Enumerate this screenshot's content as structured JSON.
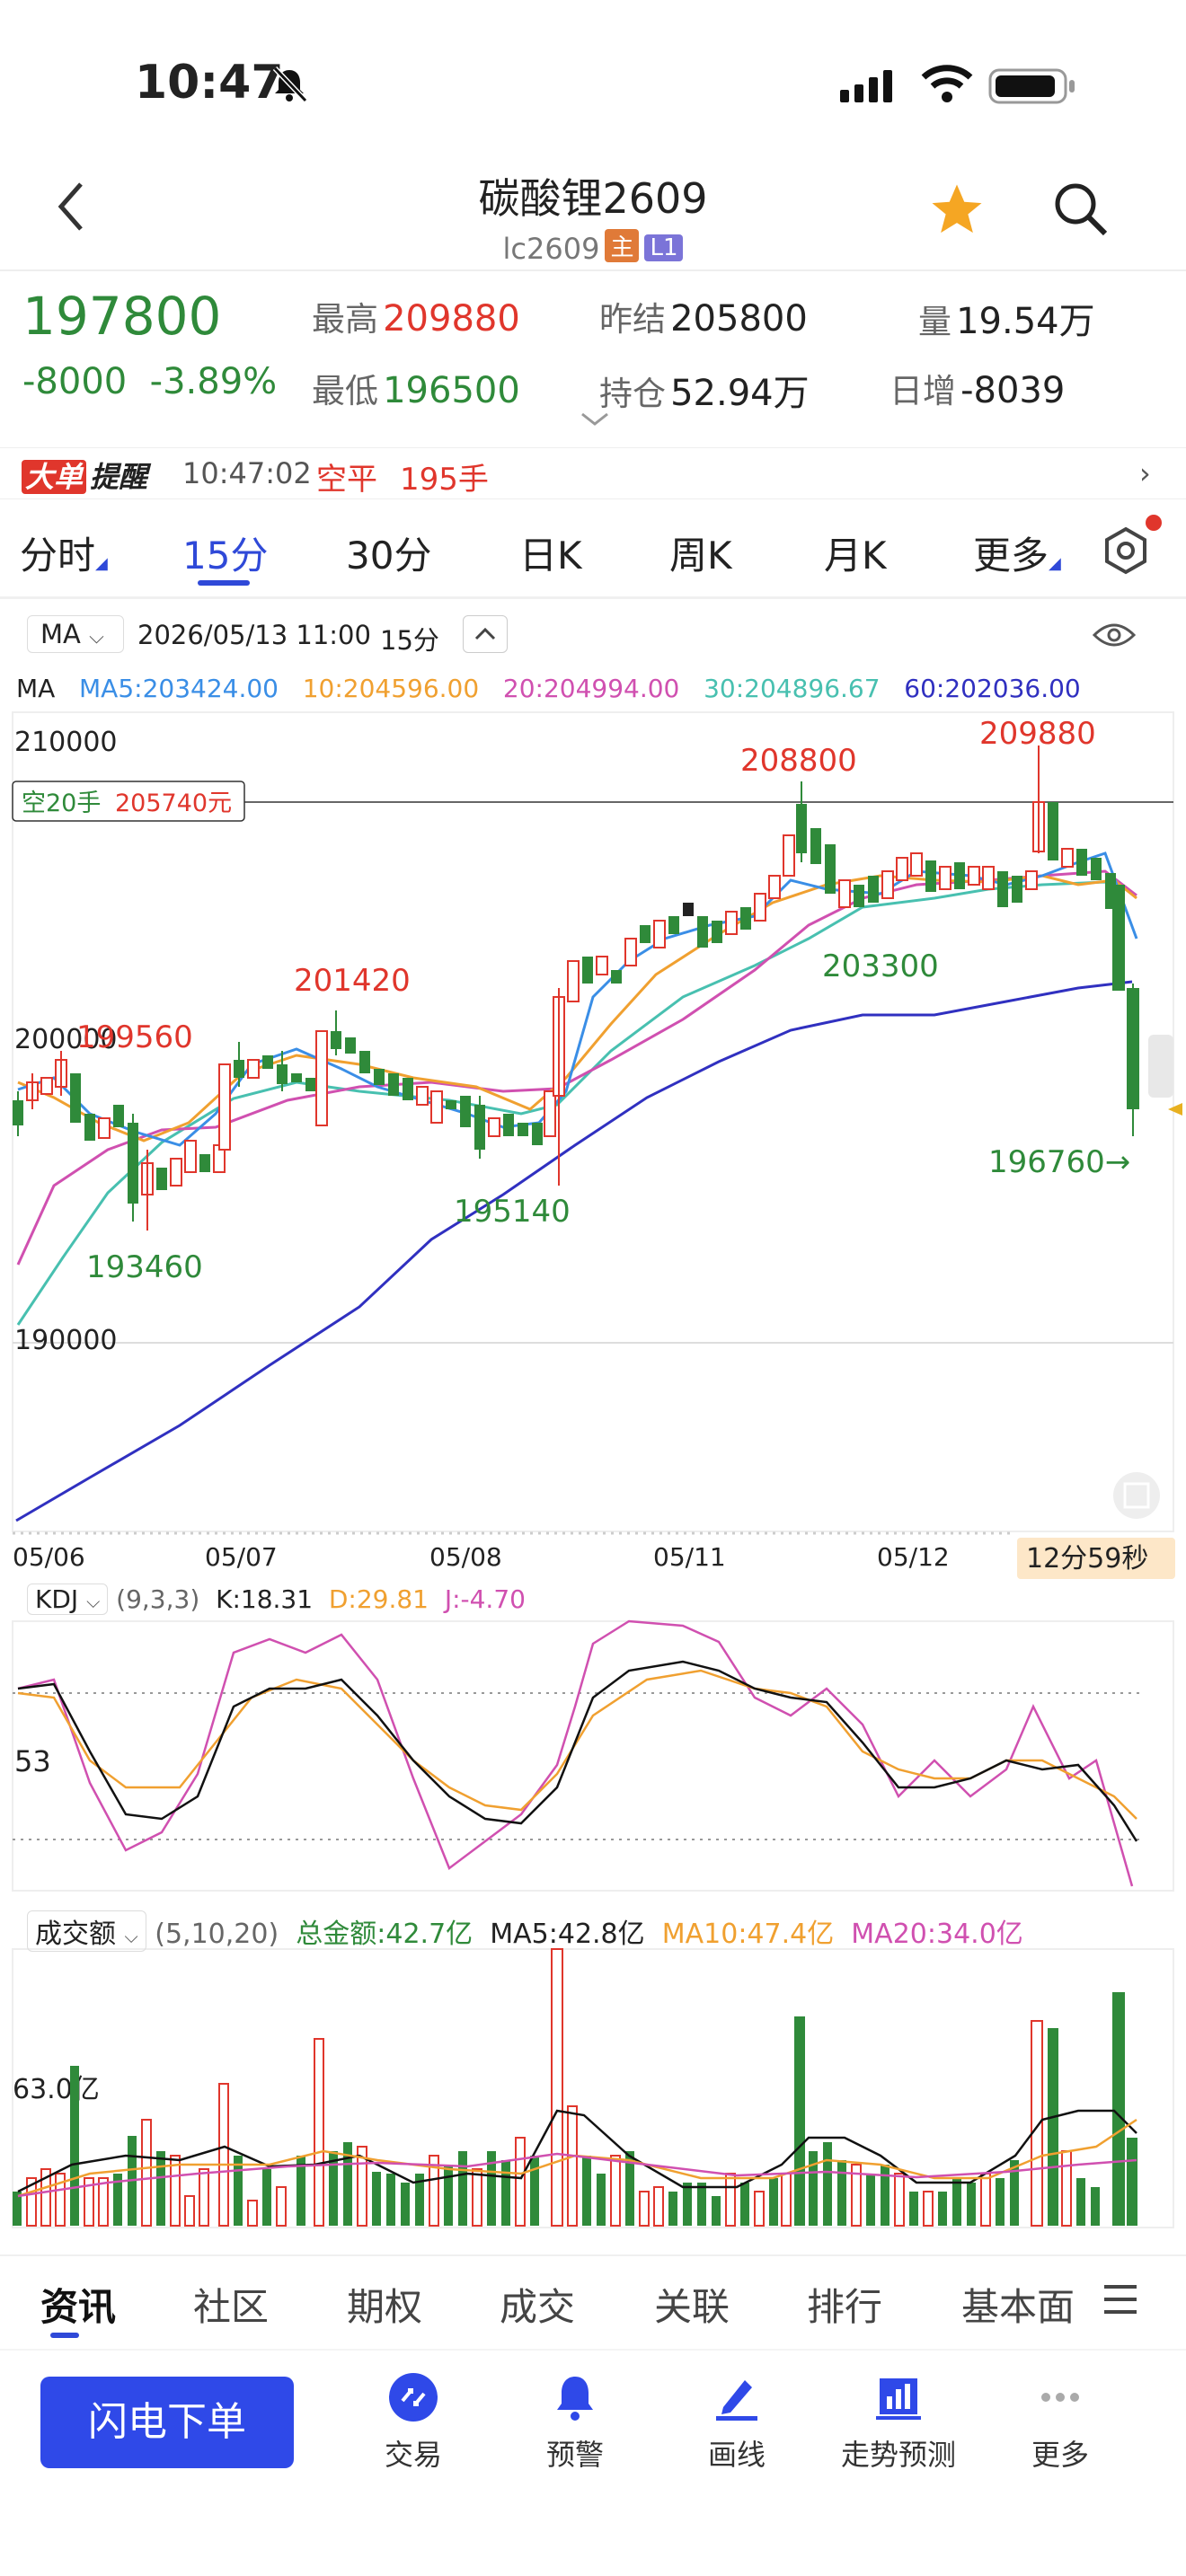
{
  "status_bar": {
    "time": "10:47"
  },
  "header": {
    "title": "碳酸锂2609",
    "code": "lc2609",
    "tag_main": "主",
    "tag_l1": "L1"
  },
  "quote": {
    "last_price": "197800",
    "change": "-8000",
    "change_pct": "-3.89%",
    "high_label": "最高",
    "high": "209880",
    "low_label": "最低",
    "low": "196500",
    "prev_settle_label": "昨结",
    "prev_settle": "205800",
    "open_interest_label": "持仓",
    "open_interest": "52.94万",
    "volume_label": "量",
    "volume": "19.54万",
    "daily_inc_label": "日增",
    "daily_inc": "-8039"
  },
  "alert": {
    "badge_a": "大单",
    "badge_b": "提醒",
    "time": "10:47:02",
    "action": "空平",
    "qty": "195手"
  },
  "period_tabs": [
    "分时",
    "15分",
    "30分",
    "日K",
    "周K",
    "月K",
    "更多"
  ],
  "chart_toolbar": {
    "indicator": "MA",
    "datetime": "2026/05/13 11:00",
    "period": "15分"
  },
  "ma_values": {
    "label": "MA",
    "ma5": "MA5:203424.00",
    "ma10": "10:204596.00",
    "ma20": "20:204994.00",
    "ma30": "30:204896.67",
    "ma60": "60:202036.00"
  },
  "main_chart": {
    "y_ticks": [
      "210000",
      "200000",
      "190000"
    ],
    "position_label": "空20手",
    "position_price": "205740元",
    "annotations": {
      "high_1": "208800",
      "high_2": "209880",
      "high_3": "201420",
      "high_4": "199560",
      "low_1": "193460",
      "low_2": "195140",
      "low_3": "203300",
      "low_4": "196760→"
    },
    "x_labels": [
      "05/06",
      "05/07",
      "05/08",
      "05/11",
      "05/12"
    ],
    "countdown": "12分59秒"
  },
  "kdj": {
    "name": "KDJ",
    "params": "(9,3,3)",
    "k": "K:18.31",
    "d": "D:29.81",
    "j": "J:-4.70",
    "level": "53"
  },
  "volume": {
    "name": "成交额",
    "params": "(5,10,20)",
    "total": "总金额:42.7亿",
    "ma5": "MA5:42.8亿",
    "ma10": "MA10:47.4亿",
    "ma20": "MA20:34.0亿",
    "level": "63.0亿"
  },
  "news_tabs": [
    "资讯",
    "社区",
    "期权",
    "成交",
    "关联",
    "排行",
    "基本面"
  ],
  "bottom_nav": {
    "flash_order": "闪电下单",
    "items": [
      "交易",
      "预警",
      "画线",
      "走势预测",
      "更多"
    ]
  },
  "colors": {
    "up": "#e0362c",
    "down": "#2f8a3a",
    "accent": "#2f49d8",
    "ma5": "#3a8ee6",
    "ma10": "#f0a030",
    "ma20": "#d050b0",
    "ma30": "#48c0b0",
    "ma60": "#3030c0"
  }
}
